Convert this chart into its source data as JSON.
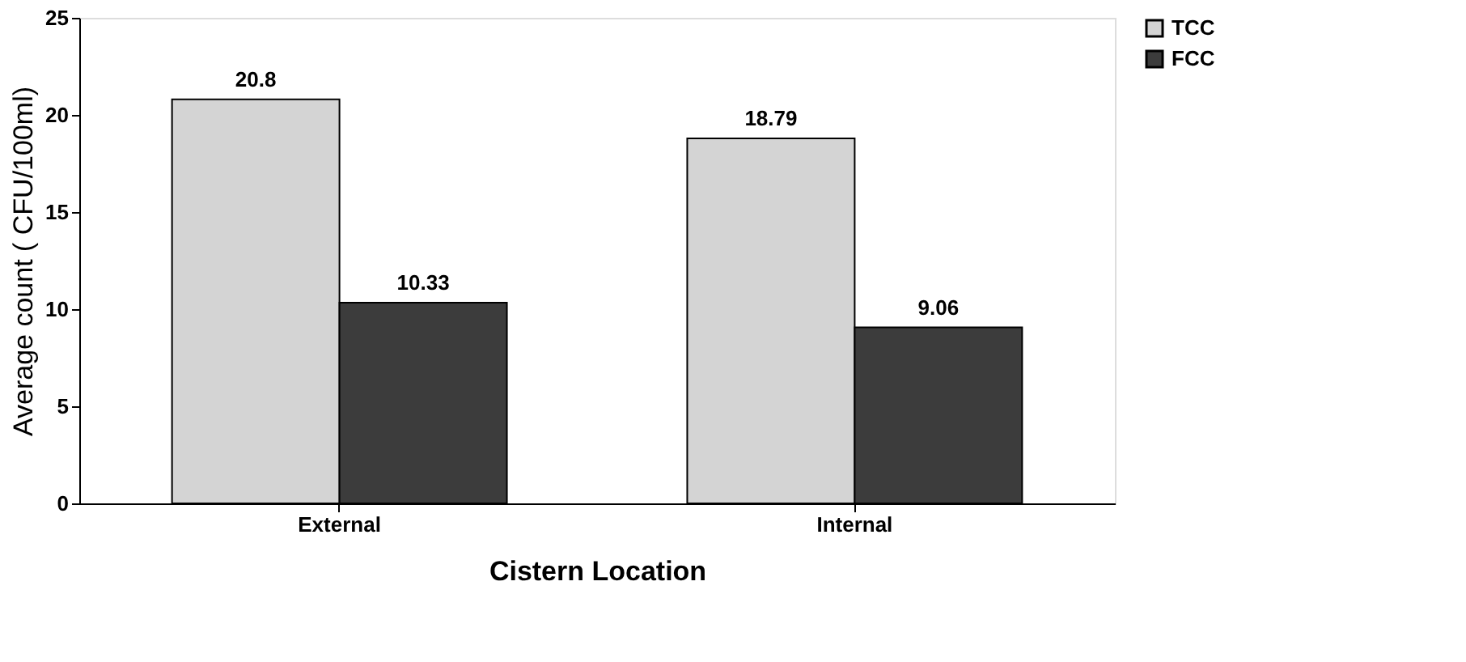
{
  "chart_data": {
    "type": "bar",
    "xlabel": "Cistern Location",
    "ylabel": "Average count ( CFU/100ml)",
    "categories": [
      "External",
      "Internal"
    ],
    "series": [
      {
        "name": "TCC",
        "color": "#d4d4d4",
        "values": [
          20.8,
          18.79
        ]
      },
      {
        "name": "FCC",
        "color": "#3c3c3c",
        "values": [
          10.33,
          9.06
        ]
      }
    ],
    "ylim": [
      0,
      25
    ],
    "yticks": [
      0,
      5,
      10,
      15,
      20,
      25
    ],
    "grid": false,
    "legend": "right",
    "data_labels": true
  }
}
